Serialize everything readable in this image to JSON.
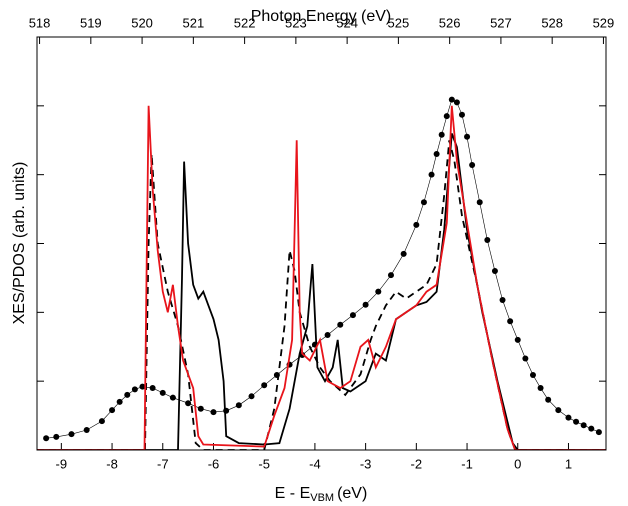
{
  "chart_data": {
    "type": "line",
    "x2label": "Photon Energy (eV)",
    "ylabel": "XES/PDOS (arb. units)",
    "xlabel_parts": [
      "E - E",
      "VBM",
      "(eV)"
    ],
    "xlim": [
      -9.48,
      1.74
    ],
    "xticks": [
      -9,
      -8,
      -7,
      -6,
      -5,
      -4,
      -3,
      -2,
      -1,
      0,
      1
    ],
    "x2lim": [
      517.95,
      529.05
    ],
    "x2ticks": [
      518,
      519,
      520,
      521,
      522,
      523,
      524,
      525,
      526,
      527,
      528,
      529
    ],
    "ylim": [
      0,
      6
    ],
    "yticks": [
      1,
      2,
      3,
      4,
      5
    ],
    "series": [
      {
        "color": "#000000",
        "marker": "circle",
        "dash": false,
        "x": [
          -9.3,
          -9.1,
          -8.8,
          -8.5,
          -8.2,
          -8.0,
          -7.85,
          -7.7,
          -7.55,
          -7.4,
          -7.2,
          -7.0,
          -6.8,
          -6.5,
          -6.25,
          -6.0,
          -5.75,
          -5.5,
          -5.25,
          -5.0,
          -4.75,
          -4.5,
          -4.25,
          -4.0,
          -3.75,
          -3.5,
          -3.25,
          -3.0,
          -2.75,
          -2.5,
          -2.25,
          -2.0,
          -1.85,
          -1.7,
          -1.6,
          -1.5,
          -1.4,
          -1.3,
          -1.2,
          -1.1,
          -1.0,
          -0.9,
          -0.75,
          -0.6,
          -0.45,
          -0.3,
          -0.15,
          0.0,
          0.15,
          0.3,
          0.45,
          0.6,
          0.8,
          1.0,
          1.15,
          1.3,
          1.45,
          1.6
        ],
        "values": [
          0.17,
          0.19,
          0.23,
          0.29,
          0.42,
          0.58,
          0.7,
          0.8,
          0.88,
          0.92,
          0.9,
          0.83,
          0.76,
          0.68,
          0.6,
          0.55,
          0.57,
          0.65,
          0.78,
          0.94,
          1.09,
          1.24,
          1.38,
          1.53,
          1.67,
          1.82,
          1.96,
          2.11,
          2.3,
          2.54,
          2.85,
          3.27,
          3.6,
          4.0,
          4.3,
          4.58,
          4.85,
          5.09,
          5.05,
          4.87,
          4.55,
          4.14,
          3.6,
          3.05,
          2.6,
          2.18,
          1.87,
          1.6,
          1.33,
          1.09,
          0.9,
          0.73,
          0.58,
          0.47,
          0.41,
          0.36,
          0.31,
          0.26
        ]
      },
      {
        "color": "#000000",
        "marker": "none",
        "dash": false,
        "x": [
          -9.48,
          -6.7,
          -6.62,
          -6.58,
          -6.5,
          -6.4,
          -6.3,
          -6.2,
          -6.1,
          -6.0,
          -5.9,
          -5.8,
          -5.75,
          -5.5,
          -5.0,
          -4.7,
          -4.5,
          -4.3,
          -4.15,
          -4.05,
          -3.95,
          -3.8,
          -3.65,
          -3.55,
          -3.45,
          -3.3,
          -3.0,
          -2.8,
          -2.6,
          -2.4,
          -2.2,
          -2.0,
          -1.8,
          -1.6,
          -1.45,
          -1.3,
          -1.2,
          -1.0,
          -0.7,
          -0.4,
          -0.1,
          0.0,
          1.74
        ],
        "values": [
          0,
          0,
          2.5,
          4.19,
          3.0,
          2.4,
          2.2,
          2.3,
          2.1,
          1.9,
          1.6,
          1.0,
          0.2,
          0.1,
          0.08,
          0.1,
          0.6,
          1.4,
          1.8,
          2.7,
          1.2,
          1.0,
          1.2,
          1.6,
          0.9,
          0.85,
          1.0,
          1.4,
          1.3,
          1.9,
          2.0,
          2.1,
          2.15,
          2.3,
          3.2,
          4.6,
          4.4,
          3.2,
          2.0,
          1.0,
          0.1,
          0,
          0
        ]
      },
      {
        "color": "#000000",
        "marker": "none",
        "dash": true,
        "x": [
          -9.48,
          -7.35,
          -7.28,
          -7.22,
          -7.1,
          -6.9,
          -6.7,
          -6.5,
          -6.35,
          -6.2,
          -5.0,
          -4.8,
          -4.6,
          -4.5,
          -4.4,
          -4.3,
          -4.1,
          -3.9,
          -3.7,
          -3.4,
          -3.1,
          -2.9,
          -2.8,
          -2.6,
          -2.4,
          -2.2,
          -2.0,
          -1.8,
          -1.6,
          -1.45,
          -1.35,
          -1.25,
          -1.1,
          -0.8,
          -0.5,
          -0.2,
          -0.05,
          1.74
        ],
        "values": [
          0,
          0,
          3.0,
          4.3,
          3.0,
          2.3,
          1.8,
          1.1,
          0.1,
          0,
          0,
          0.6,
          1.8,
          2.9,
          2.6,
          2.0,
          1.5,
          1.2,
          1.0,
          0.8,
          1.1,
          1.6,
          1.8,
          2.1,
          2.3,
          2.2,
          2.3,
          2.4,
          2.7,
          3.7,
          4.5,
          4.2,
          3.4,
          2.4,
          1.3,
          0.3,
          0,
          0
        ]
      },
      {
        "color": "#e8141b",
        "marker": "none",
        "dash": false,
        "x": [
          -9.48,
          -7.36,
          -7.32,
          -7.28,
          -7.2,
          -7.1,
          -7.0,
          -6.9,
          -6.8,
          -6.7,
          -6.6,
          -6.4,
          -6.3,
          -6.2,
          -5.0,
          -4.8,
          -4.6,
          -4.45,
          -4.36,
          -4.3,
          -4.25,
          -4.1,
          -3.9,
          -3.75,
          -3.5,
          -3.3,
          -3.1,
          -2.95,
          -2.8,
          -2.6,
          -2.4,
          -2.2,
          -2.0,
          -1.8,
          -1.6,
          -1.4,
          -1.3,
          -1.2,
          -1.0,
          -0.8,
          -0.5,
          -0.2,
          -0.05,
          1.74
        ],
        "values": [
          0,
          0,
          2.5,
          5.0,
          3.8,
          2.9,
          2.3,
          2.0,
          2.4,
          1.8,
          1.3,
          0.9,
          0.2,
          0.08,
          0.05,
          0.5,
          0.9,
          1.6,
          4.5,
          2.0,
          1.4,
          1.3,
          1.6,
          1.0,
          0.9,
          1.0,
          1.5,
          1.6,
          1.2,
          1.5,
          1.9,
          2.0,
          2.1,
          2.3,
          2.4,
          3.3,
          5.0,
          4.2,
          3.3,
          2.4,
          1.3,
          0.3,
          0,
          0
        ]
      }
    ]
  }
}
